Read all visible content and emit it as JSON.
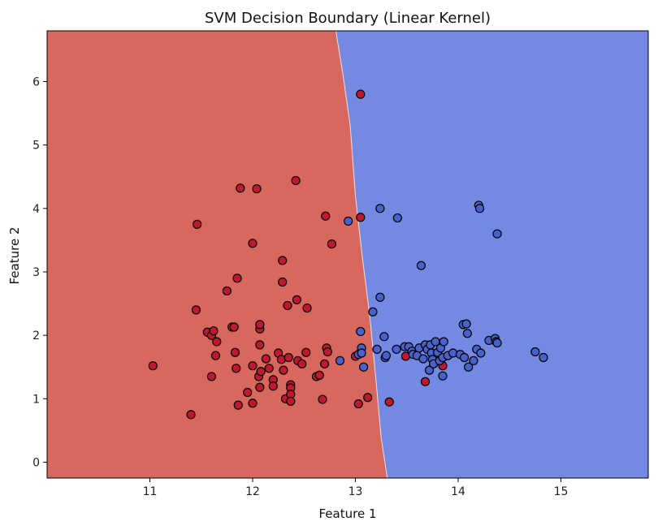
{
  "chart_data": {
    "type": "scatter",
    "title": "SVM Decision Boundary (Linear Kernel)",
    "xlabel": "Feature 1",
    "ylabel": "Feature 2",
    "xlim": [
      10.0,
      15.85
    ],
    "ylim": [
      -0.25,
      6.8
    ],
    "xticks": [
      11,
      12,
      13,
      14,
      15
    ],
    "yticks": [
      0,
      1,
      2,
      3,
      4,
      5,
      6
    ],
    "grid": false,
    "legend": "none",
    "colors": {
      "region_class0": "#d8675e",
      "region_class1": "#7489e2",
      "point_class0": "#c0192f",
      "point_class1": "#4861cc",
      "boundary": "#f2dede",
      "edge": "#000000"
    },
    "boundary": [
      {
        "x": 12.81,
        "y": 6.8
      },
      {
        "x": 12.88,
        "y": 6.1
      },
      {
        "x": 12.95,
        "y": 5.3
      },
      {
        "x": 13.0,
        "y": 4.2
      },
      {
        "x": 13.07,
        "y": 3.2
      },
      {
        "x": 13.14,
        "y": 2.3
      },
      {
        "x": 13.2,
        "y": 1.3
      },
      {
        "x": 13.25,
        "y": 0.4
      },
      {
        "x": 13.31,
        "y": -0.25
      }
    ],
    "series": [
      {
        "class": 0,
        "points": [
          [
            11.03,
            1.52
          ],
          [
            11.4,
            0.75
          ],
          [
            11.45,
            2.4
          ],
          [
            11.46,
            3.75
          ],
          [
            11.56,
            2.05
          ],
          [
            11.6,
            2.0
          ],
          [
            11.6,
            1.35
          ],
          [
            11.62,
            2.07
          ],
          [
            11.64,
            1.68
          ],
          [
            11.65,
            1.9
          ],
          [
            11.75,
            2.7
          ],
          [
            11.8,
            2.13
          ],
          [
            11.82,
            2.13
          ],
          [
            11.83,
            1.73
          ],
          [
            11.84,
            1.48
          ],
          [
            11.85,
            2.9
          ],
          [
            11.86,
            0.9
          ],
          [
            11.88,
            4.32
          ],
          [
            11.95,
            1.1
          ],
          [
            12.0,
            3.45
          ],
          [
            12.0,
            1.52
          ],
          [
            12.0,
            0.93
          ],
          [
            12.04,
            4.31
          ],
          [
            12.06,
            1.35
          ],
          [
            12.07,
            2.1
          ],
          [
            12.07,
            1.18
          ],
          [
            12.07,
            2.17
          ],
          [
            12.07,
            1.85
          ],
          [
            12.08,
            1.43
          ],
          [
            12.13,
            1.63
          ],
          [
            12.16,
            1.48
          ],
          [
            12.2,
            1.3
          ],
          [
            12.2,
            1.2
          ],
          [
            12.25,
            1.72
          ],
          [
            12.28,
            1.62
          ],
          [
            12.29,
            3.18
          ],
          [
            12.29,
            2.84
          ],
          [
            12.3,
            1.45
          ],
          [
            12.32,
            1.0
          ],
          [
            12.34,
            2.47
          ],
          [
            12.35,
            1.65
          ],
          [
            12.37,
            1.22
          ],
          [
            12.37,
            1.17
          ],
          [
            12.37,
            1.07
          ],
          [
            12.37,
            0.96
          ],
          [
            12.42,
            4.44
          ],
          [
            12.43,
            2.56
          ],
          [
            12.44,
            1.6
          ],
          [
            12.48,
            1.55
          ],
          [
            12.52,
            1.73
          ],
          [
            12.53,
            2.43
          ],
          [
            12.62,
            1.35
          ],
          [
            12.65,
            1.37
          ],
          [
            12.68,
            0.99
          ],
          [
            12.7,
            1.55
          ],
          [
            12.71,
            3.88
          ],
          [
            12.72,
            1.8
          ],
          [
            12.73,
            1.74
          ],
          [
            12.77,
            3.44
          ],
          [
            13.0,
            1.67
          ],
          [
            13.03,
            0.92
          ],
          [
            13.05,
            5.8
          ],
          [
            13.05,
            3.86
          ],
          [
            13.12,
            1.02
          ],
          [
            13.33,
            0.95
          ],
          [
            13.49,
            1.67
          ],
          [
            13.68,
            1.27
          ],
          [
            13.85,
            1.52
          ]
        ]
      },
      {
        "class": 1,
        "points": [
          [
            12.85,
            1.6
          ],
          [
            12.93,
            3.8
          ],
          [
            13.03,
            1.7
          ],
          [
            13.05,
            2.06
          ],
          [
            13.06,
            1.8
          ],
          [
            13.06,
            1.72
          ],
          [
            13.08,
            1.5
          ],
          [
            13.17,
            2.37
          ],
          [
            13.21,
            1.78
          ],
          [
            13.24,
            4.0
          ],
          [
            13.24,
            2.6
          ],
          [
            13.28,
            1.98
          ],
          [
            13.29,
            1.65
          ],
          [
            13.3,
            1.68
          ],
          [
            13.4,
            1.78
          ],
          [
            13.41,
            3.85
          ],
          [
            13.48,
            1.82
          ],
          [
            13.52,
            1.82
          ],
          [
            13.55,
            1.75
          ],
          [
            13.56,
            1.7
          ],
          [
            13.6,
            1.68
          ],
          [
            13.62,
            1.8
          ],
          [
            13.64,
            3.1
          ],
          [
            13.66,
            1.63
          ],
          [
            13.68,
            1.85
          ],
          [
            13.7,
            1.78
          ],
          [
            13.72,
            1.45
          ],
          [
            13.73,
            1.85
          ],
          [
            13.74,
            1.72
          ],
          [
            13.75,
            1.62
          ],
          [
            13.76,
            1.55
          ],
          [
            13.78,
            1.9
          ],
          [
            13.8,
            1.73
          ],
          [
            13.82,
            1.6
          ],
          [
            13.83,
            1.8
          ],
          [
            13.85,
            1.36
          ],
          [
            13.85,
            1.65
          ],
          [
            13.86,
            1.9
          ],
          [
            13.9,
            1.68
          ],
          [
            13.95,
            1.72
          ],
          [
            14.02,
            1.7
          ],
          [
            14.05,
            2.17
          ],
          [
            14.06,
            1.65
          ],
          [
            14.08,
            2.18
          ],
          [
            14.09,
            2.03
          ],
          [
            14.1,
            1.5
          ],
          [
            14.15,
            1.6
          ],
          [
            14.18,
            1.78
          ],
          [
            14.2,
            4.05
          ],
          [
            14.21,
            4.0
          ],
          [
            14.22,
            1.72
          ],
          [
            14.3,
            1.92
          ],
          [
            14.36,
            1.95
          ],
          [
            14.37,
            1.9
          ],
          [
            14.38,
            3.6
          ],
          [
            14.38,
            1.88
          ],
          [
            14.75,
            1.74
          ],
          [
            14.83,
            1.65
          ]
        ]
      }
    ]
  }
}
